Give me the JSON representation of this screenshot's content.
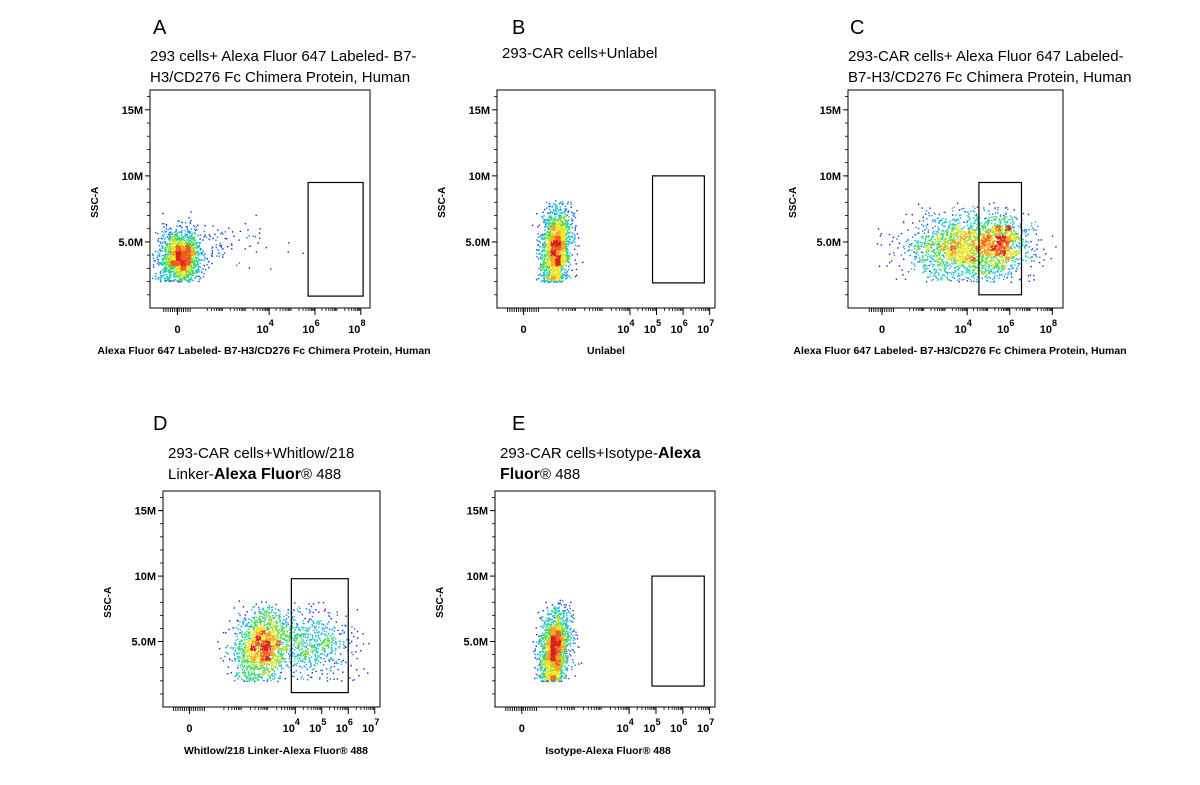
{
  "chart_data": [
    {
      "type": "scatter",
      "panel": "A",
      "title_lines": [
        [
          {
            "t": "293 cells+ Alexa Fluor 647 Labeled- B7-",
            "b": false
          }
        ],
        [
          {
            "t": "H3/CD276 Fc Chimera Protein, Human",
            "b": false
          }
        ]
      ],
      "xlabel": "Alexa Fluor 647 Labeled- B7-H3/CD276 Fc Chimera Protein, Human",
      "ylabel": "SSC-A",
      "y_ticks": [
        {
          "v": 5,
          "label": "5.0M"
        },
        {
          "v": 10,
          "label": "10M"
        },
        {
          "v": 15,
          "label": "15M"
        }
      ],
      "ylim": [
        0,
        16.5
      ],
      "x_scale": "biexponential",
      "xlim": [
        -1.2,
        8.4
      ],
      "x_ticks": [
        {
          "v": 0,
          "base": "0",
          "exp": ""
        },
        {
          "v": 4,
          "base": "10",
          "exp": "4"
        },
        {
          "v": 6,
          "base": "10",
          "exp": "6"
        },
        {
          "v": 8,
          "base": "10",
          "exp": "8"
        }
      ],
      "gate": {
        "x": [
          5.7,
          8.1
        ],
        "y": [
          0.9,
          9.5
        ]
      },
      "populations": [
        {
          "n": 1700,
          "cx": 0.1,
          "cy": 3.9,
          "sx": 0.45,
          "sy": 1.0,
          "rot": 0.15
        },
        {
          "n": 110,
          "cx": 1.6,
          "cy": 4.8,
          "sx": 1.3,
          "sy": 0.9,
          "rot": 0
        }
      ]
    },
    {
      "type": "scatter",
      "panel": "B",
      "title_lines": [
        [
          {
            "t": "293-CAR cells+Unlabel",
            "b": false
          }
        ]
      ],
      "xlabel": "Unlabel",
      "ylabel": "SSC-A",
      "y_ticks": [
        {
          "v": 5,
          "label": "5.0M"
        },
        {
          "v": 10,
          "label": "10M"
        },
        {
          "v": 15,
          "label": "15M"
        }
      ],
      "ylim": [
        0,
        16.5
      ],
      "x_scale": "biexponential",
      "xlim": [
        -1.0,
        7.2
      ],
      "x_ticks": [
        {
          "v": 0,
          "base": "0",
          "exp": ""
        },
        {
          "v": 4,
          "base": "10",
          "exp": "4"
        },
        {
          "v": 5,
          "base": "10",
          "exp": "5"
        },
        {
          "v": 6,
          "base": "10",
          "exp": "6"
        },
        {
          "v": 7,
          "base": "10",
          "exp": "7"
        }
      ],
      "gate": {
        "x": [
          4.85,
          6.8
        ],
        "y": [
          1.9,
          10.0
        ]
      },
      "populations": [
        {
          "n": 1800,
          "cx": 1.2,
          "cy": 4.6,
          "sx": 0.32,
          "sy": 1.4,
          "rot": 0.55
        }
      ]
    },
    {
      "type": "scatter",
      "panel": "C",
      "title_lines": [
        [
          {
            "t": "293-CAR  cells+  Alexa  Fluor  647  Labeled-",
            "b": false
          }
        ],
        [
          {
            "t": "B7-H3/CD276  Fc  Chimera  Protein,  Human",
            "b": false
          }
        ]
      ],
      "xlabel": "Alexa Fluor 647 Labeled- B7-H3/CD276 Fc Chimera Protein, Human",
      "ylabel": "SSC-A",
      "y_ticks": [
        {
          "v": 5,
          "label": "5.0M"
        },
        {
          "v": 10,
          "label": "10M"
        },
        {
          "v": 15,
          "label": "15M"
        }
      ],
      "ylim": [
        0,
        16.5
      ],
      "x_scale": "biexponential",
      "xlim": [
        -1.6,
        8.5
      ],
      "x_ticks": [
        {
          "v": 0,
          "base": "0",
          "exp": ""
        },
        {
          "v": 4,
          "base": "10",
          "exp": "4"
        },
        {
          "v": 6,
          "base": "10",
          "exp": "6"
        },
        {
          "v": 8,
          "base": "10",
          "exp": "8"
        }
      ],
      "gate": {
        "x": [
          4.55,
          6.55
        ],
        "y": [
          1.0,
          9.5
        ]
      },
      "populations": [
        {
          "n": 2000,
          "cx": 3.9,
          "cy": 4.6,
          "sx": 1.35,
          "sy": 1.2,
          "rot": 0
        },
        {
          "n": 600,
          "cx": 5.6,
          "cy": 5.0,
          "sx": 0.5,
          "sy": 1.0,
          "rot": 0
        }
      ]
    },
    {
      "type": "scatter",
      "panel": "D",
      "title_lines": [
        [
          {
            "t": "293-CAR  cells+Whitlow/218",
            "b": false
          }
        ],
        [
          {
            "t": "Linker-",
            "b": false
          },
          {
            "t": "Alexa Fluor",
            "b": true
          },
          {
            "t": "® 488",
            "b": false
          }
        ]
      ],
      "xlabel": "Whitlow/218 Linker-Alexa Fluor® 488",
      "ylabel": "SSC-A",
      "y_ticks": [
        {
          "v": 5,
          "label": "5.0M"
        },
        {
          "v": 10,
          "label": "10M"
        },
        {
          "v": 15,
          "label": "15M"
        }
      ],
      "ylim": [
        0,
        16.5
      ],
      "x_scale": "biexponential",
      "xlim": [
        -1.0,
        7.2
      ],
      "x_ticks": [
        {
          "v": 0,
          "base": "0",
          "exp": ""
        },
        {
          "v": 4,
          "base": "10",
          "exp": "4"
        },
        {
          "v": 5,
          "base": "10",
          "exp": "5"
        },
        {
          "v": 6,
          "base": "10",
          "exp": "6"
        },
        {
          "v": 7,
          "base": "10",
          "exp": "7"
        }
      ],
      "gate": {
        "x": [
          3.85,
          6.0
        ],
        "y": [
          1.1,
          9.8
        ]
      },
      "populations": [
        {
          "n": 1500,
          "cx": 2.7,
          "cy": 4.7,
          "sx": 0.55,
          "sy": 1.3,
          "rot": 0.35
        },
        {
          "n": 700,
          "cx": 4.5,
          "cy": 5.0,
          "sx": 0.8,
          "sy": 1.3,
          "rot": 0
        }
      ]
    },
    {
      "type": "scatter",
      "panel": "E",
      "title_lines": [
        [
          {
            "t": "293-CAR   cells+Isotype-",
            "b": false
          },
          {
            "t": "Alexa",
            "b": true
          }
        ],
        [
          {
            "t": "Fluor",
            "b": true
          },
          {
            "t": "® 488",
            "b": false
          }
        ]
      ],
      "xlabel": "Isotype-Alexa Fluor® 488",
      "ylabel": "SSC-A",
      "y_ticks": [
        {
          "v": 5,
          "label": "5.0M"
        },
        {
          "v": 10,
          "label": "10M"
        },
        {
          "v": 15,
          "label": "15M"
        }
      ],
      "ylim": [
        0,
        16.5
      ],
      "x_scale": "biexponential",
      "xlim": [
        -1.0,
        7.2
      ],
      "x_ticks": [
        {
          "v": 0,
          "base": "0",
          "exp": ""
        },
        {
          "v": 4,
          "base": "10",
          "exp": "4"
        },
        {
          "v": 5,
          "base": "10",
          "exp": "5"
        },
        {
          "v": 6,
          "base": "10",
          "exp": "6"
        },
        {
          "v": 7,
          "base": "10",
          "exp": "7"
        }
      ],
      "gate": {
        "x": [
          4.85,
          6.8
        ],
        "y": [
          1.6,
          10.0
        ]
      },
      "populations": [
        {
          "n": 1800,
          "cx": 1.2,
          "cy": 4.5,
          "sx": 0.32,
          "sy": 1.4,
          "rot": 0.55
        }
      ]
    }
  ],
  "colors": {
    "density_scale": [
      "#2020c8",
      "#1f6fe0",
      "#16b0e6",
      "#1fd2b0",
      "#42d84a",
      "#9fe02a",
      "#ece51e",
      "#f8a21c",
      "#f05a1c",
      "#d8201c"
    ],
    "frame": "#000000"
  }
}
